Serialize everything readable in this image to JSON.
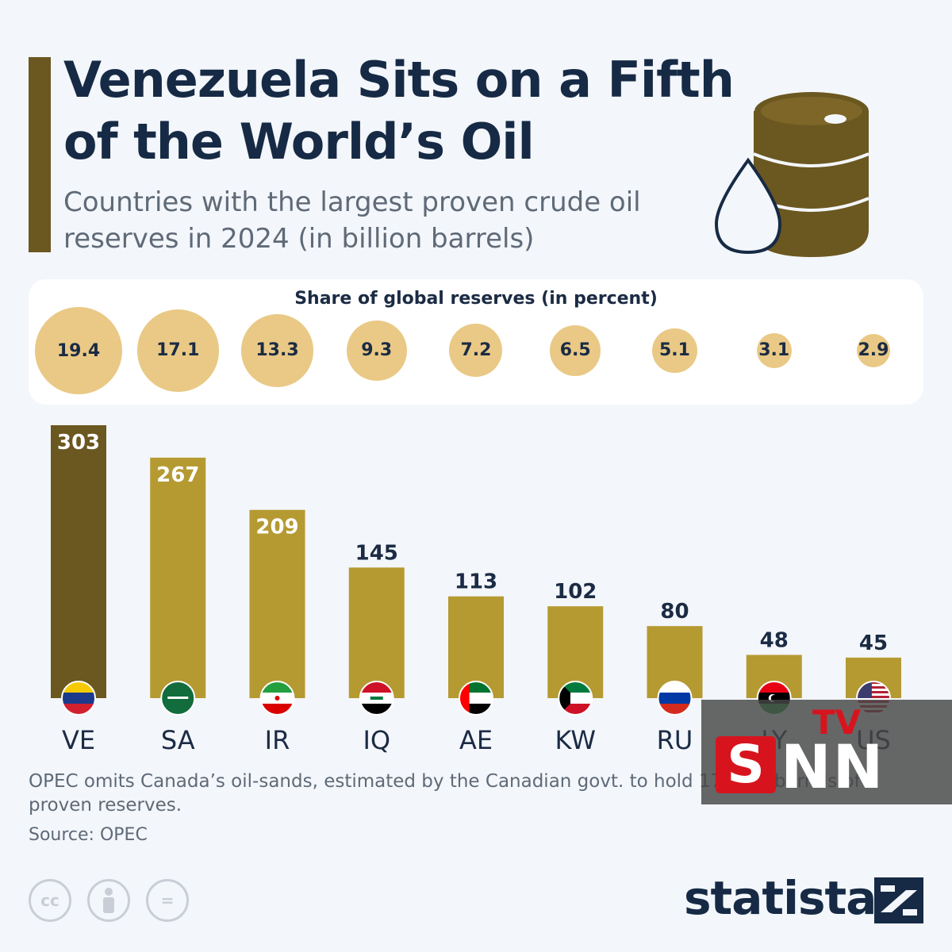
{
  "header": {
    "title": "Venezuela Sits on a Fifth of the World’s Oil",
    "subtitle": "Countries with the largest proven crude oil reserves in 2024 (in billion barrels)"
  },
  "share_panel": {
    "title": "Share of global reserves (in percent)"
  },
  "footer": {
    "note": "OPEC omits Canada’s oil-sands, estimated by the Canadian govt. to hold 171 bn. barrels of proven reserves.",
    "source": "Source: OPEC",
    "brand": "statista",
    "cc_icons": [
      "cc-icon",
      "by-icon",
      "nd-icon"
    ],
    "cc_labels": [
      "cc",
      "",
      "="
    ]
  },
  "watermark": {
    "s": "S",
    "nn": "NN",
    "tv": "TV"
  },
  "colors": {
    "highlight_bar": "#6b5720",
    "bar": "#b59a32",
    "bubble": "#e9c985",
    "title": "#162a45"
  },
  "chart_data": {
    "type": "bar",
    "categories": [
      "VE",
      "SA",
      "IR",
      "IQ",
      "AE",
      "KW",
      "RU",
      "LY",
      "US"
    ],
    "values": [
      303,
      267,
      209,
      145,
      113,
      102,
      80,
      48,
      45
    ],
    "share_percent": [
      19.4,
      17.1,
      13.3,
      9.3,
      7.2,
      6.5,
      5.1,
      3.1,
      2.9
    ],
    "title": "Venezuela Sits on a Fifth of the World’s Oil",
    "subtitle": "Countries with the largest proven crude oil reserves in 2024 (in billion barrels)",
    "xlabel": "",
    "ylabel": "",
    "ylim": [
      0,
      303
    ],
    "grid": false,
    "legend": "none",
    "flags": [
      "venezuela-flag-icon",
      "saudi-arabia-flag-icon",
      "iran-flag-icon",
      "iraq-flag-icon",
      "uae-flag-icon",
      "kuwait-flag-icon",
      "russia-flag-icon",
      "libya-flag-icon",
      "usa-flag-icon"
    ]
  }
}
